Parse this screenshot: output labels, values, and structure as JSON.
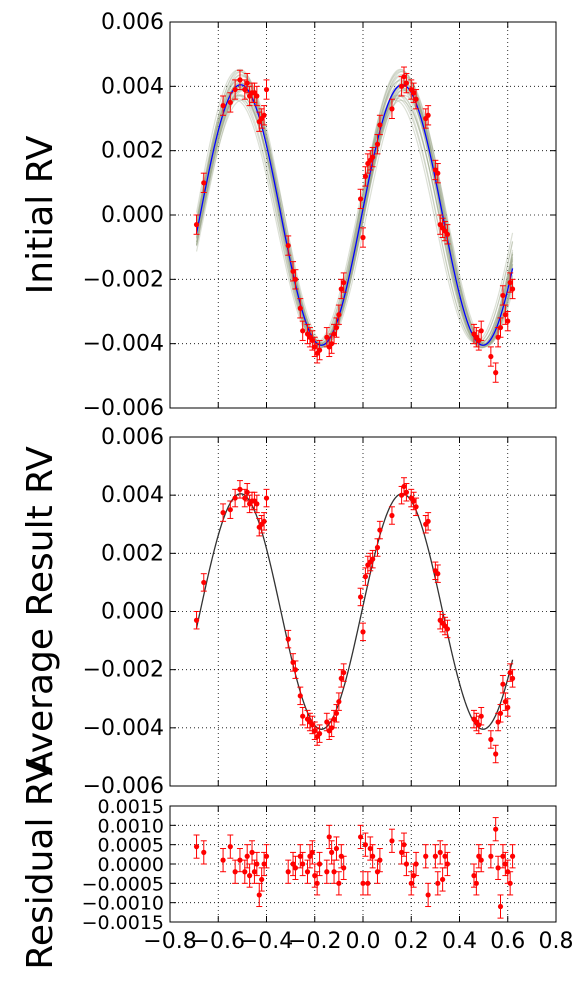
{
  "chart_data": [
    {
      "type": "line",
      "panel": "top",
      "title": "",
      "xlabel": "",
      "ylabel": "Initial RV",
      "xlim": [
        -0.8,
        0.8
      ],
      "ylim": [
        -0.006,
        0.006
      ],
      "grid": true,
      "show_xticklabels": false,
      "yticks": [
        -0.006,
        -0.004,
        -0.002,
        0.0,
        0.002,
        0.004,
        0.006
      ],
      "ytick_labels": [
        "−0.006",
        "−0.004",
        "−0.002",
        "0.000",
        "0.002",
        "0.004",
        "0.006"
      ],
      "xticks": [
        -0.8,
        -0.6,
        -0.4,
        -0.2,
        0.0,
        0.2,
        0.4,
        0.6,
        0.8
      ],
      "series": [
        {
          "role": "model-samples",
          "color": "#9aa58a",
          "count": 30
        },
        {
          "role": "model",
          "color": "#0000ff"
        },
        {
          "role": "observations",
          "color": "#ff0000"
        }
      ],
      "model": {
        "amplitude": 0.00405,
        "period": 0.67,
        "phase_zero": -0.675,
        "offset": 0.0
      }
    },
    {
      "type": "line",
      "panel": "middle",
      "title": "",
      "xlabel": "",
      "ylabel": "Average Result RV",
      "xlim": [
        -0.8,
        0.8
      ],
      "ylim": [
        -0.006,
        0.006
      ],
      "grid": true,
      "show_xticklabels": false,
      "yticks": [
        -0.006,
        -0.004,
        -0.002,
        0.0,
        0.002,
        0.004,
        0.006
      ],
      "ytick_labels": [
        "−0.006",
        "−0.004",
        "−0.002",
        "0.000",
        "0.002",
        "0.004",
        "0.006"
      ],
      "xticks": [
        -0.8,
        -0.6,
        -0.4,
        -0.2,
        0.0,
        0.2,
        0.4,
        0.6,
        0.8
      ],
      "series": [
        {
          "role": "model",
          "color": "#333333"
        },
        {
          "role": "observations",
          "color": "#ff0000"
        }
      ],
      "model": {
        "amplitude": 0.00405,
        "period": 0.67,
        "phase_zero": -0.675,
        "offset": 0.0
      }
    },
    {
      "type": "scatter",
      "panel": "bottom",
      "title": "",
      "xlabel": "",
      "ylabel": "Residual RV",
      "xlim": [
        -0.8,
        0.8
      ],
      "ylim": [
        -0.0015,
        0.0015
      ],
      "grid": true,
      "show_xticklabels": true,
      "yticks": [
        -0.0015,
        -0.001,
        -0.0005,
        0.0,
        0.0005,
        0.001,
        0.0015
      ],
      "ytick_labels": [
        "−0.0015",
        "−0.0010",
        "−0.0005",
        "0.0000",
        "0.0005",
        "0.0010",
        "0.0015"
      ],
      "xticks": [
        -0.8,
        -0.6,
        -0.4,
        -0.2,
        0.0,
        0.2,
        0.4,
        0.6,
        0.8
      ],
      "xtick_labels": [
        "−0.8",
        "−0.6",
        "−0.4",
        "−0.2",
        "0.0",
        "0.2",
        "0.4",
        "0.6",
        "0.8"
      ],
      "series": [
        {
          "role": "residuals",
          "color": "#ff0000"
        }
      ]
    }
  ],
  "observations": {
    "x": [
      -0.69,
      -0.66,
      -0.58,
      -0.55,
      -0.53,
      -0.51,
      -0.49,
      -0.48,
      -0.47,
      -0.46,
      -0.45,
      -0.44,
      -0.43,
      -0.42,
      -0.41,
      -0.4,
      -0.31,
      -0.29,
      -0.28,
      -0.26,
      -0.25,
      -0.23,
      -0.22,
      -0.21,
      -0.2,
      -0.19,
      -0.18,
      -0.15,
      -0.14,
      -0.13,
      -0.12,
      -0.11,
      -0.1,
      -0.09,
      -0.08,
      -0.01,
      -0.0,
      0.01,
      0.02,
      0.03,
      0.04,
      0.06,
      0.07,
      0.12,
      0.16,
      0.17,
      0.18,
      0.2,
      0.21,
      0.22,
      0.26,
      0.27,
      0.3,
      0.31,
      0.32,
      0.33,
      0.34,
      0.35,
      0.46,
      0.47,
      0.48,
      0.49,
      0.53,
      0.55,
      0.56,
      0.57,
      0.58,
      0.59,
      0.6,
      0.61,
      0.62
    ],
    "y": [
      -0.0003,
      0.001,
      0.0034,
      0.0035,
      0.0039,
      0.0042,
      0.0039,
      0.0041,
      0.0037,
      0.0038,
      0.0038,
      0.0037,
      0.0029,
      0.003,
      0.0031,
      0.0039,
      -0.00095,
      -0.00175,
      -0.002,
      -0.0029,
      -0.0036,
      -0.0037,
      -0.0038,
      -0.0039,
      -0.0041,
      -0.0043,
      -0.0042,
      -0.0038,
      -0.0041,
      -0.004,
      -0.0037,
      -0.0035,
      -0.0031,
      -0.0023,
      -0.0021,
      0.0005,
      -0.0007,
      0.0012,
      0.0016,
      0.0017,
      0.0018,
      0.0022,
      0.0028,
      0.0033,
      0.004,
      0.0043,
      0.0041,
      0.0039,
      0.0038,
      0.0036,
      0.003,
      0.0031,
      0.0014,
      0.0013,
      -0.0003,
      -0.0004,
      -0.0005,
      -0.0006,
      -0.0037,
      -0.0038,
      -0.0039,
      -0.0036,
      -0.0044,
      -0.0049,
      -0.0038,
      -0.0035,
      -0.0025,
      -0.0031,
      -0.0033,
      -0.0021,
      -0.0023
    ],
    "err": [
      0.0003,
      0.0003,
      0.0003,
      0.0003,
      0.0003,
      0.0003,
      0.0003,
      0.0003,
      0.0003,
      0.0003,
      0.0003,
      0.0003,
      0.0003,
      0.0003,
      0.0003,
      0.0003,
      0.0003,
      0.0003,
      0.0003,
      0.0003,
      0.0003,
      0.0003,
      0.0003,
      0.0003,
      0.0003,
      0.0003,
      0.0003,
      0.0003,
      0.0003,
      0.0003,
      0.0003,
      0.0003,
      0.0003,
      0.0003,
      0.0003,
      0.0003,
      0.0003,
      0.0003,
      0.0003,
      0.0003,
      0.0003,
      0.0003,
      0.0003,
      0.0003,
      0.0003,
      0.0003,
      0.0003,
      0.0003,
      0.0003,
      0.0003,
      0.0003,
      0.0003,
      0.0003,
      0.0003,
      0.0003,
      0.0003,
      0.0003,
      0.0003,
      0.0003,
      0.0003,
      0.0003,
      0.0003,
      0.0003,
      0.0003,
      0.0003,
      0.0003,
      0.0003,
      0.0003,
      0.0003,
      0.0003,
      0.0003
    ]
  },
  "residuals": {
    "x": [
      -0.69,
      -0.66,
      -0.58,
      -0.55,
      -0.53,
      -0.51,
      -0.49,
      -0.48,
      -0.47,
      -0.46,
      -0.45,
      -0.44,
      -0.43,
      -0.42,
      -0.41,
      -0.4,
      -0.31,
      -0.29,
      -0.28,
      -0.26,
      -0.25,
      -0.23,
      -0.22,
      -0.21,
      -0.2,
      -0.19,
      -0.18,
      -0.15,
      -0.14,
      -0.13,
      -0.12,
      -0.11,
      -0.1,
      -0.09,
      -0.08,
      -0.01,
      -0.0,
      0.01,
      0.02,
      0.03,
      0.04,
      0.06,
      0.07,
      0.12,
      0.16,
      0.17,
      0.18,
      0.2,
      0.21,
      0.22,
      0.26,
      0.27,
      0.3,
      0.31,
      0.32,
      0.33,
      0.34,
      0.35,
      0.46,
      0.47,
      0.48,
      0.49,
      0.53,
      0.55,
      0.56,
      0.57,
      0.58,
      0.59,
      0.6,
      0.61,
      0.62
    ],
    "y": [
      0.00045,
      0.0003,
      0.0001,
      0.00045,
      -0.0002,
      0.0001,
      -0.0002,
      0.0002,
      -0.0003,
      0.0003,
      -0.0002,
      0.0,
      -0.0008,
      -0.0004,
      0.0,
      0.0002,
      -0.0002,
      0.0,
      -0.0001,
      0.0002,
      0.0,
      -0.0002,
      0.0002,
      0.0003,
      -0.0003,
      -0.0005,
      0.0,
      -0.0002,
      0.0007,
      0.0003,
      -0.0002,
      0.0004,
      -0.0005,
      0.0002,
      -0.0001,
      0.0007,
      -0.0005,
      0.0005,
      -0.0005,
      0.0004,
      0.0002,
      -0.0002,
      0.0001,
      0.0006,
      0.0003,
      0.0005,
      0.0,
      -0.0005,
      -0.0003,
      0.0,
      0.0002,
      -0.0008,
      0.0002,
      -0.0005,
      0.0003,
      -0.0004,
      0.0002,
      0.0,
      -0.0003,
      -0.0005,
      0.0002,
      0.0001,
      0.0002,
      0.0009,
      -0.0001,
      -0.0011,
      0.0002,
      0.0,
      -0.0002,
      -0.0005,
      0.0002
    ],
    "err": [
      0.0003,
      0.0003,
      0.0003,
      0.0003,
      0.0003,
      0.0003,
      0.0003,
      0.0003,
      0.0003,
      0.0003,
      0.0003,
      0.0003,
      0.0003,
      0.0003,
      0.0003,
      0.0003,
      0.0003,
      0.0003,
      0.0003,
      0.0003,
      0.0003,
      0.0003,
      0.0003,
      0.0003,
      0.0003,
      0.0003,
      0.0003,
      0.0003,
      0.0003,
      0.0003,
      0.0003,
      0.0003,
      0.0003,
      0.0003,
      0.0003,
      0.0003,
      0.0003,
      0.0003,
      0.0003,
      0.0003,
      0.0003,
      0.0003,
      0.0003,
      0.0003,
      0.0003,
      0.0003,
      0.0003,
      0.0003,
      0.0003,
      0.0003,
      0.0003,
      0.0003,
      0.0003,
      0.0003,
      0.0003,
      0.0003,
      0.0003,
      0.0003,
      0.0003,
      0.0003,
      0.0003,
      0.0003,
      0.0003,
      0.0003,
      0.0003,
      0.0003,
      0.0003,
      0.0003,
      0.0003,
      0.0003,
      0.0003
    ]
  }
}
